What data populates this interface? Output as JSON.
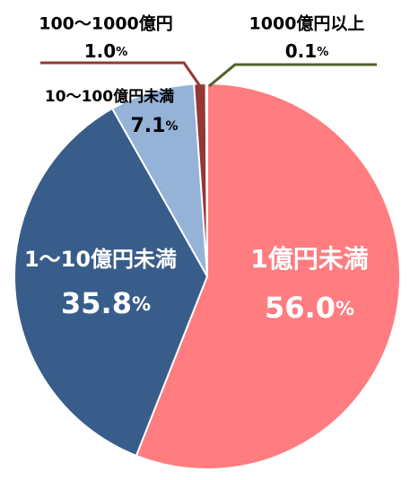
{
  "chart_data": {
    "type": "pie",
    "categories": [
      "1億円未満",
      "1～10億円未満",
      "10～100億円未満",
      "100～1000億円",
      "1000億円以上"
    ],
    "values": [
      56.0,
      35.8,
      7.1,
      1.0,
      0.1
    ],
    "value_labels": [
      "56.0%",
      "35.8%",
      "7.1%",
      "1.0%",
      "0.1%"
    ],
    "colors": [
      "#ff7c80",
      "#385d8a",
      "#95b3d7",
      "#953735",
      "#4f6228"
    ]
  }
}
